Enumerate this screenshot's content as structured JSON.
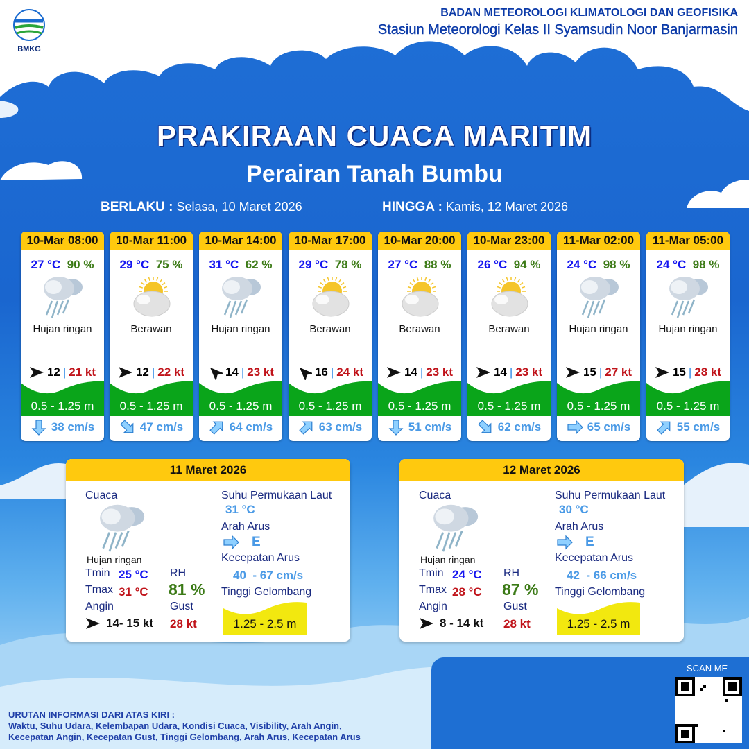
{
  "header": {
    "org": "BADAN METEOROLOGI KLIMATOLOGI DAN GEOFISIKA",
    "station": "Stasiun Meteorologi Kelas II Syamsudin Noor Banjarmasin",
    "logo_text": "BMKG"
  },
  "title": "PRAKIRAAN CUACA MARITIM",
  "subtitle": "Perairan Tanah Bumbu",
  "valid": {
    "from_label": "BERLAKU :",
    "from": "Selasa, 10 Maret 2026",
    "to_label": "HINGGA :",
    "to": "Kamis, 12 Maret 2026"
  },
  "colors": {
    "header_yellow": "#ffc90e",
    "wave_green": "#0aa51a",
    "wave_yellow": "#f2e80f",
    "temp": "#1515f0",
    "rh": "#3b7a16",
    "gust": "#c0131a",
    "current": "#4a9ae6"
  },
  "forecasts": [
    {
      "time": "10-Mar 08:00",
      "temp": "27 °C",
      "rh": "90 %",
      "icon": "rain-cloud-icon",
      "weather": "Hujan ringan",
      "wind_dir": "E",
      "wind": "12",
      "gust": "21 kt",
      "wave": "0.5 - 1.25 m",
      "current_dir": "S",
      "current": "38 cm/s"
    },
    {
      "time": "10-Mar 11:00",
      "temp": "29 °C",
      "rh": "75 %",
      "icon": "partly-cloudy-icon",
      "weather": "Berawan",
      "wind_dir": "E",
      "wind": "12",
      "gust": "22 kt",
      "wave": "0.5 - 1.25 m",
      "current_dir": "SE",
      "current": "47 cm/s"
    },
    {
      "time": "10-Mar 14:00",
      "temp": "31 °C",
      "rh": "62 %",
      "icon": "rain-cloud-icon",
      "weather": "Hujan ringan",
      "wind_dir": "NW",
      "wind": "14",
      "gust": "23 kt",
      "wave": "0.5 - 1.25 m",
      "current_dir": "NE",
      "current": "64 cm/s"
    },
    {
      "time": "10-Mar 17:00",
      "temp": "29 °C",
      "rh": "78 %",
      "icon": "partly-cloudy-icon",
      "weather": "Berawan",
      "wind_dir": "NW",
      "wind": "16",
      "gust": "24 kt",
      "wave": "0.5 - 1.25 m",
      "current_dir": "NE",
      "current": "63 cm/s"
    },
    {
      "time": "10-Mar 20:00",
      "temp": "27 °C",
      "rh": "88 %",
      "icon": "partly-cloudy-icon",
      "weather": "Berawan",
      "wind_dir": "E",
      "wind": "14",
      "gust": "23 kt",
      "wave": "0.5 - 1.25 m",
      "current_dir": "S",
      "current": "51 cm/s"
    },
    {
      "time": "10-Mar 23:00",
      "temp": "26 °C",
      "rh": "94 %",
      "icon": "partly-cloudy-icon",
      "weather": "Berawan",
      "wind_dir": "E",
      "wind": "14",
      "gust": "23 kt",
      "wave": "0.5 - 1.25 m",
      "current_dir": "SE",
      "current": "62 cm/s"
    },
    {
      "time": "11-Mar 02:00",
      "temp": "24 °C",
      "rh": "98 %",
      "icon": "rain-cloud-icon",
      "weather": "Hujan ringan",
      "wind_dir": "E",
      "wind": "15",
      "gust": "27 kt",
      "wave": "0.5 - 1.25 m",
      "current_dir": "E",
      "current": "65 cm/s"
    },
    {
      "time": "11-Mar 05:00",
      "temp": "24 °C",
      "rh": "98 %",
      "icon": "rain-cloud-icon",
      "weather": "Hujan ringan",
      "wind_dir": "E",
      "wind": "15",
      "gust": "28 kt",
      "wave": "0.5 - 1.25 m",
      "current_dir": "NE",
      "current": "55 cm/s"
    }
  ],
  "labels": {
    "weather": "Cuaca",
    "tmin": "Tmin",
    "tmax": "Tmax",
    "rh": "RH",
    "wind": "Angin",
    "gust": "Gust",
    "sst": "Suhu Permukaan Laut",
    "current_dir": "Arah Arus",
    "current_speed": "Kecepatan Arus",
    "wave": "Tinggi Gelombang"
  },
  "daily": [
    {
      "date": "11 Maret 2026",
      "weather": "Hujan ringan",
      "tmin": "25 °C",
      "tmax": "31 °C",
      "rh": "81 %",
      "wind": "14- 15 kt",
      "gust": "28 kt",
      "sst": "31 °C",
      "current_dir": "E",
      "current_speed": "40  - 67 cm/s",
      "wave": "1.25 - 2.5 m"
    },
    {
      "date": "12 Maret 2026",
      "weather": "Hujan ringan",
      "tmin": "24 °C",
      "tmax": "28 °C",
      "rh": "87 %",
      "wind": "8  - 14 kt",
      "gust": "28 kt",
      "sst": "30 °C",
      "current_dir": "E",
      "current_speed": "42  - 66 cm/s",
      "wave": "1.25 - 2.5 m"
    }
  ],
  "qr": {
    "label": "SCAN ME"
  },
  "footer": [
    "URUTAN INFORMASI DARI ATAS KIRI :",
    "Waktu, Suhu Udara, Kelembapan Udara, Kondisi Cuaca, Visibility, Arah Angin,",
    "Kecepatan Angin, Kecepatan Gust, Tinggi Gelombang, Arah Arus, Kecepatan Arus"
  ]
}
